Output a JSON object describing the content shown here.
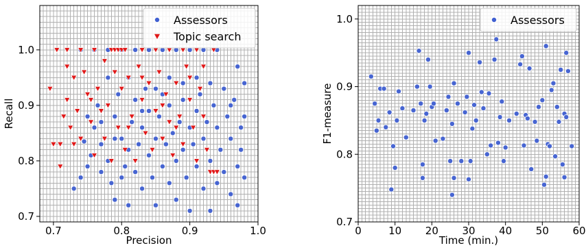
{
  "chart_data": [
    {
      "type": "scatter",
      "xlabel": "Precision",
      "ylabel": "Recall",
      "xlim": [
        0.68,
        1.0
      ],
      "ylim": [
        0.69,
        1.08
      ],
      "xticks": [
        0.7,
        0.8,
        0.9,
        1.0
      ],
      "xtick_labels": [
        "0.7",
        "0.8",
        "0.9",
        "1.0"
      ],
      "yticks": [
        0.7,
        0.8,
        0.9,
        1.0
      ],
      "ytick_labels": [
        "0.7",
        "0.8",
        "0.9",
        "1.0"
      ],
      "grid": true,
      "legend_position": "top-right",
      "series": [
        {
          "name": "Assessors",
          "marker": "circle",
          "color": "#3f5fd1",
          "points": [
            [
              0.73,
              0.75
            ],
            [
              0.74,
              0.77
            ],
            [
              0.745,
              0.835
            ],
            [
              0.75,
              0.79
            ],
            [
              0.755,
              0.81
            ],
            [
              0.76,
              0.86
            ],
            [
              0.765,
              0.9
            ],
            [
              0.77,
              0.78
            ],
            [
              0.77,
              0.83
            ],
            [
              0.78,
              0.95
            ],
            [
              0.78,
              0.8
            ],
            [
              0.785,
              0.76
            ],
            [
              0.79,
              0.73
            ],
            [
              0.79,
              0.88
            ],
            [
              0.795,
              0.92
            ],
            [
              0.8,
              0.77
            ],
            [
              0.8,
              0.84
            ],
            [
              0.805,
              0.79
            ],
            [
              0.81,
              0.82
            ],
            [
              0.81,
              0.72
            ],
            [
              0.815,
              0.87
            ],
            [
              0.82,
              0.91
            ],
            [
              0.82,
              0.78
            ],
            [
              0.825,
              0.83
            ],
            [
              0.83,
              0.75
            ],
            [
              0.83,
              0.86
            ],
            [
              0.835,
              0.93
            ],
            [
              0.84,
              0.81
            ],
            [
              0.84,
              0.89
            ],
            [
              0.845,
              0.77
            ],
            [
              0.85,
              0.84
            ],
            [
              0.85,
              0.72
            ],
            [
              0.855,
              0.88
            ],
            [
              0.86,
              0.79
            ],
            [
              0.86,
              0.92
            ],
            [
              0.865,
              0.83
            ],
            [
              0.87,
              0.76
            ],
            [
              0.87,
              0.9
            ],
            [
              0.875,
              0.85
            ],
            [
              0.88,
              0.73
            ],
            [
              0.88,
              0.8
            ],
            [
              0.885,
              0.87
            ],
            [
              0.89,
              0.82
            ],
            [
              0.89,
              0.94
            ],
            [
              0.895,
              0.77
            ],
            [
              0.9,
              0.86
            ],
            [
              0.9,
              0.71
            ],
            [
              0.905,
              0.83
            ],
            [
              0.91,
              0.89
            ],
            [
              0.91,
              0.79
            ],
            [
              0.915,
              0.92
            ],
            [
              0.92,
              0.75
            ],
            [
              0.92,
              0.84
            ],
            [
              0.925,
              0.87
            ],
            [
              0.93,
              0.71
            ],
            [
              0.93,
              0.8
            ],
            [
              0.935,
              0.9
            ],
            [
              0.94,
              0.76
            ],
            [
              0.94,
              0.86
            ],
            [
              0.945,
              0.82
            ],
            [
              0.95,
              0.93
            ],
            [
              0.95,
              0.78
            ],
            [
              0.955,
              0.88
            ],
            [
              0.96,
              0.74
            ],
            [
              0.96,
              0.84
            ],
            [
              0.965,
              0.91
            ],
            [
              0.97,
              0.79
            ],
            [
              0.97,
              0.72
            ],
            [
              0.975,
              0.86
            ],
            [
              0.98,
              0.94
            ],
            [
              0.98,
              0.77
            ],
            [
              0.975,
              0.82
            ],
            [
              0.74,
              1.0
            ],
            [
              0.76,
              1.0
            ],
            [
              0.78,
              1.0
            ],
            [
              0.8,
              1.0
            ],
            [
              0.82,
              1.0
            ],
            [
              0.84,
              1.0
            ],
            [
              0.86,
              1.0
            ],
            [
              0.88,
              1.0
            ],
            [
              0.9,
              1.0
            ],
            [
              0.92,
              1.0
            ],
            [
              0.94,
              1.0
            ],
            [
              0.77,
              0.87
            ],
            [
              0.79,
              0.84
            ],
            [
              0.81,
              0.95
            ],
            [
              0.83,
              0.89
            ],
            [
              0.85,
              0.93
            ],
            [
              0.87,
              0.95
            ],
            [
              0.89,
              0.91
            ],
            [
              0.91,
              0.95
            ],
            [
              0.93,
              0.94
            ],
            [
              0.75,
              0.88
            ],
            [
              0.97,
              0.97
            ],
            [
              0.96,
              0.9
            ],
            [
              0.98,
              0.88
            ]
          ]
        },
        {
          "name": "Topic search",
          "marker": "triangle-down",
          "color": "#e01818",
          "points": [
            [
              0.695,
              0.93
            ],
            [
              0.7,
              0.83
            ],
            [
              0.71,
              0.79
            ],
            [
              0.71,
              0.83
            ],
            [
              0.715,
              0.88
            ],
            [
              0.72,
              0.97
            ],
            [
              0.72,
              0.91
            ],
            [
              0.725,
              0.86
            ],
            [
              0.73,
              0.95
            ],
            [
              0.735,
              0.89
            ],
            [
              0.74,
              0.84
            ],
            [
              0.745,
              0.96
            ],
            [
              0.75,
              0.92
            ],
            [
              0.755,
              0.87
            ],
            [
              0.76,
              0.81
            ],
            [
              0.765,
              0.93
            ],
            [
              0.77,
              0.89
            ],
            [
              0.775,
              0.84
            ],
            [
              0.78,
              0.9
            ],
            [
              0.785,
              0.8
            ],
            [
              0.79,
              0.96
            ],
            [
              0.795,
              0.86
            ],
            [
              0.8,
              0.93
            ],
            [
              0.805,
              0.82
            ],
            [
              0.81,
              0.95
            ],
            [
              0.815,
              0.88
            ],
            [
              0.82,
              0.8
            ],
            [
              0.825,
              0.97
            ],
            [
              0.83,
              0.91
            ],
            [
              0.835,
              0.85
            ],
            [
              0.84,
              0.94
            ],
            [
              0.845,
              0.82
            ],
            [
              0.85,
              0.89
            ],
            [
              0.855,
              0.96
            ],
            [
              0.86,
              0.84
            ],
            [
              0.865,
              0.92
            ],
            [
              0.87,
              0.87
            ],
            [
              0.875,
              0.81
            ],
            [
              0.88,
              0.94
            ],
            [
              0.885,
              0.88
            ],
            [
              0.89,
              0.83
            ],
            [
              0.895,
              0.97
            ],
            [
              0.9,
              0.91
            ],
            [
              0.905,
              0.86
            ],
            [
              0.91,
              0.8
            ],
            [
              0.915,
              0.93
            ],
            [
              0.92,
              0.88
            ],
            [
              0.925,
              0.82
            ],
            [
              0.93,
              0.78
            ],
            [
              0.935,
              0.78
            ],
            [
              0.94,
              0.78
            ],
            [
              0.705,
              1.0
            ],
            [
              0.72,
              1.0
            ],
            [
              0.74,
              1.0
            ],
            [
              0.76,
              1.0
            ],
            [
              0.785,
              1.0
            ],
            [
              0.79,
              1.0
            ],
            [
              0.795,
              1.0
            ],
            [
              0.8,
              1.0
            ],
            [
              0.805,
              1.0
            ],
            [
              0.83,
              1.0
            ],
            [
              0.85,
              1.0
            ],
            [
              0.87,
              1.0
            ],
            [
              0.89,
              1.0
            ],
            [
              0.91,
              1.0
            ],
            [
              0.935,
              1.0
            ],
            [
              0.775,
              0.98
            ],
            [
              0.81,
              0.86
            ],
            [
              0.86,
              0.9
            ],
            [
              0.9,
              0.95
            ],
            [
              0.73,
              0.83
            ],
            [
              0.755,
              0.91
            ],
            [
              0.83,
              0.95
            ],
            [
              0.88,
              0.86
            ],
            [
              0.92,
              0.97
            ]
          ]
        }
      ]
    },
    {
      "type": "scatter",
      "xlabel": "Time (min.)",
      "ylabel": "F1-measure",
      "xlim": [
        0,
        60
      ],
      "ylim": [
        0.7,
        1.02
      ],
      "xticks": [
        0,
        10,
        20,
        30,
        40,
        50,
        60
      ],
      "xtick_labels": [
        "0",
        "10",
        "20",
        "30",
        "40",
        "50",
        "60"
      ],
      "yticks": [
        0.7,
        0.8,
        0.9,
        1.0
      ],
      "ytick_labels": [
        "0.7",
        "0.8",
        "0.9",
        "1.0"
      ],
      "grid": true,
      "legend_position": "top-right",
      "series": [
        {
          "name": "Assessors",
          "marker": "circle",
          "color": "#3f5fd1",
          "points": [
            [
              3.5,
              0.915
            ],
            [
              4.5,
              0.875
            ],
            [
              5,
              0.835
            ],
            [
              5.5,
              0.85
            ],
            [
              6,
              0.897
            ],
            [
              7,
              0.897
            ],
            [
              7.5,
              0.84
            ],
            [
              8.5,
              0.862
            ],
            [
              9,
              0.748
            ],
            [
              9.5,
              0.812
            ],
            [
              10,
              0.78
            ],
            [
              10.5,
              0.85
            ],
            [
              11,
              0.893
            ],
            [
              12,
              0.868
            ],
            [
              13,
              0.825
            ],
            [
              15,
              0.865
            ],
            [
              16,
              0.9
            ],
            [
              16.5,
              0.953
            ],
            [
              17,
              0.875
            ],
            [
              17.5,
              0.785
            ],
            [
              17.5,
              0.765
            ],
            [
              18,
              0.85
            ],
            [
              18.5,
              0.86
            ],
            [
              19,
              0.94
            ],
            [
              19.5,
              0.9
            ],
            [
              20,
              0.87
            ],
            [
              20.5,
              0.875
            ],
            [
              21,
              0.82
            ],
            [
              23,
              0.823
            ],
            [
              24,
              0.865
            ],
            [
              24.5,
              0.885
            ],
            [
              25,
              0.79
            ],
            [
              25.5,
              0.845
            ],
            [
              25.5,
              0.74
            ],
            [
              26,
              0.905
            ],
            [
              26,
              0.765
            ],
            [
              27,
              0.875
            ],
            [
              28,
              0.79
            ],
            [
              29,
              0.862
            ],
            [
              29.5,
              0.885
            ],
            [
              30,
              0.95
            ],
            [
              30,
              0.763
            ],
            [
              30.5,
              0.79
            ],
            [
              31,
              0.838
            ],
            [
              31.5,
              0.873
            ],
            [
              32,
              0.85
            ],
            [
              33,
              0.936
            ],
            [
              33.5,
              0.892
            ],
            [
              34,
              0.868
            ],
            [
              35,
              0.8
            ],
            [
              35.5,
              0.89
            ],
            [
              36,
              0.813
            ],
            [
              37,
              0.94
            ],
            [
              37.5,
              0.97
            ],
            [
              38,
              0.817
            ],
            [
              38.5,
              0.855
            ],
            [
              39,
              0.878
            ],
            [
              39.5,
              0.79
            ],
            [
              40,
              0.81
            ],
            [
              41,
              0.85
            ],
            [
              43,
              0.86
            ],
            [
              44,
              0.933
            ],
            [
              44.5,
              0.945
            ],
            [
              45,
              0.813
            ],
            [
              45.5,
              0.858
            ],
            [
              46,
              0.853
            ],
            [
              46.5,
              0.927
            ],
            [
              47,
              0.778
            ],
            [
              48,
              0.848
            ],
            [
              48.5,
              0.82
            ],
            [
              49,
              0.87
            ],
            [
              50,
              0.88
            ],
            [
              50.5,
              0.755
            ],
            [
              51,
              0.767
            ],
            [
              51,
              0.96
            ],
            [
              51.5,
              0.815
            ],
            [
              52,
              0.812
            ],
            [
              52.5,
              0.895
            ],
            [
              53,
              0.905
            ],
            [
              53.5,
              0.797
            ],
            [
              54,
              0.87
            ],
            [
              54.5,
              0.848
            ],
            [
              55,
              0.925
            ],
            [
              55.5,
              0.785
            ],
            [
              56,
              0.766
            ],
            [
              56,
              0.86
            ],
            [
              56.5,
              0.95
            ],
            [
              57,
              0.923
            ],
            [
              58,
              0.812
            ],
            [
              56.5,
              0.855
            ]
          ]
        }
      ]
    }
  ]
}
